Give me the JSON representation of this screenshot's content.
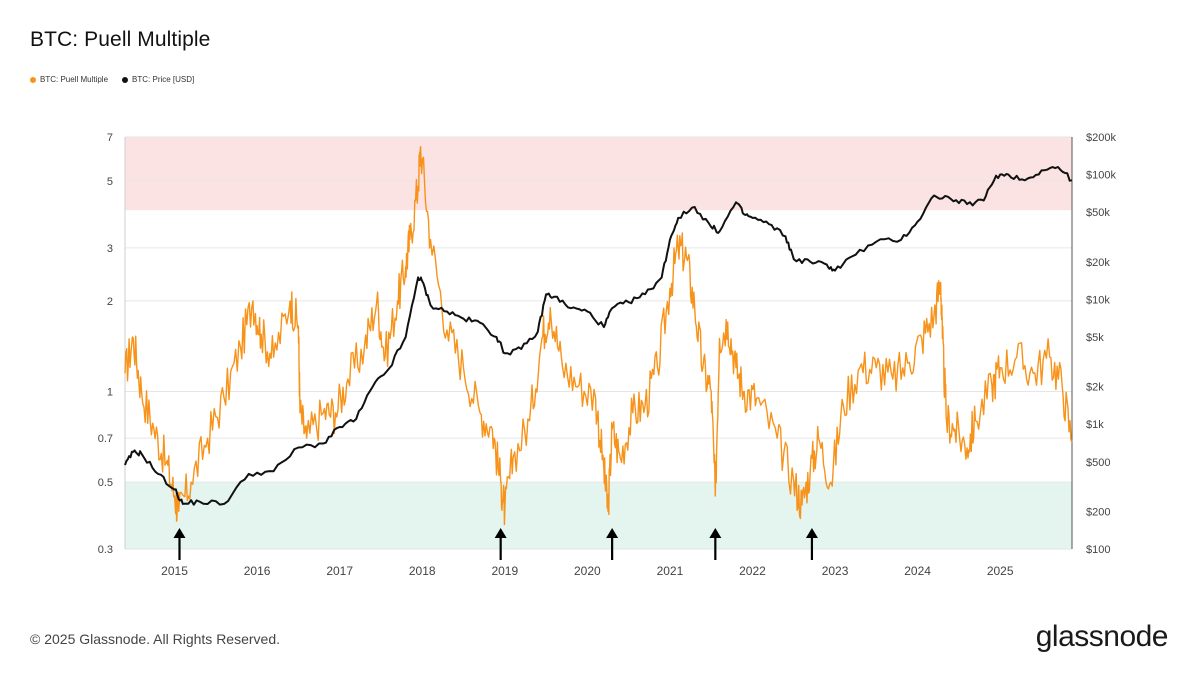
{
  "chart_data": {
    "type": "line",
    "title": "BTC: Puell Multiple",
    "legend": [
      {
        "name": "BTC: Puell Multiple",
        "color": "#f7931a"
      },
      {
        "name": "BTC: Price [USD]",
        "color": "#111111"
      }
    ],
    "x_range": [
      2014.4,
      2025.87
    ],
    "x_ticks": [
      {
        "value": 2015,
        "label": "2015"
      },
      {
        "value": 2016,
        "label": "2016"
      },
      {
        "value": 2017,
        "label": "2017"
      },
      {
        "value": 2018,
        "label": "2018"
      },
      {
        "value": 2019,
        "label": "2019"
      },
      {
        "value": 2020,
        "label": "2020"
      },
      {
        "value": 2021,
        "label": "2021"
      },
      {
        "value": 2022,
        "label": "2022"
      },
      {
        "value": 2023,
        "label": "2023"
      },
      {
        "value": 2024,
        "label": "2024"
      },
      {
        "value": 2025,
        "label": "2025"
      }
    ],
    "y_left": {
      "scale": "log",
      "range": [
        0.3,
        7
      ],
      "ticks": [
        {
          "value": 0.3,
          "label": "0.3"
        },
        {
          "value": 0.5,
          "label": "0.5"
        },
        {
          "value": 0.7,
          "label": "0.7"
        },
        {
          "value": 1,
          "label": "1"
        },
        {
          "value": 2,
          "label": "2"
        },
        {
          "value": 3,
          "label": "3"
        },
        {
          "value": 5,
          "label": "5"
        },
        {
          "value": 7,
          "label": "7"
        }
      ]
    },
    "y_right": {
      "scale": "log",
      "range": [
        100,
        200000
      ],
      "ticks": [
        {
          "value": 100,
          "label": "$100"
        },
        {
          "value": 200,
          "label": "$200"
        },
        {
          "value": 500,
          "label": "$500"
        },
        {
          "value": 1000,
          "label": "$1k"
        },
        {
          "value": 2000,
          "label": "$2k"
        },
        {
          "value": 5000,
          "label": "$5k"
        },
        {
          "value": 10000,
          "label": "$10k"
        },
        {
          "value": 20000,
          "label": "$20k"
        },
        {
          "value": 50000,
          "label": "$50k"
        },
        {
          "value": 100000,
          "label": "$100k"
        },
        {
          "value": 200000,
          "label": "$200k"
        }
      ]
    },
    "bands": [
      {
        "name": "overvalued-zone",
        "from": 4,
        "to": 7,
        "color": "#fbe3e3"
      },
      {
        "name": "undervalued-zone",
        "from": 0.3,
        "to": 0.5,
        "color": "#e4f4ee"
      }
    ],
    "series": [
      {
        "name": "BTC: Puell Multiple",
        "axis": "left",
        "color": "#f7931a",
        "x": [
          2014.4,
          2014.5,
          2014.6,
          2014.75,
          2014.9,
          2015.0,
          2015.05,
          2015.2,
          2015.4,
          2015.6,
          2015.8,
          2015.95,
          2016.05,
          2016.2,
          2016.4,
          2016.5,
          2016.52,
          2016.6,
          2016.8,
          2016.95,
          2017.1,
          2017.3,
          2017.45,
          2017.55,
          2017.7,
          2017.8,
          2017.85,
          2017.95,
          2017.98,
          2018.1,
          2018.3,
          2018.5,
          2018.7,
          2018.85,
          2018.95,
          2019.0,
          2019.1,
          2019.3,
          2019.45,
          2019.55,
          2019.7,
          2019.9,
          2020.1,
          2020.2,
          2020.25,
          2020.3,
          2020.4,
          2020.55,
          2020.7,
          2020.85,
          2021.0,
          2021.1,
          2021.2,
          2021.3,
          2021.4,
          2021.5,
          2021.55,
          2021.6,
          2021.7,
          2021.8,
          2021.9,
          2022.05,
          2022.3,
          2022.5,
          2022.6,
          2022.7,
          2022.8,
          2022.95,
          2023.1,
          2023.3,
          2023.5,
          2023.7,
          2023.9,
          2024.05,
          2024.2,
          2024.28,
          2024.3,
          2024.35,
          2024.45,
          2024.6,
          2024.7,
          2024.9,
          2025.0,
          2025.2,
          2025.4,
          2025.6,
          2025.75,
          2025.87
        ],
        "values": [
          1.15,
          1.5,
          1.0,
          0.75,
          0.58,
          0.45,
          0.4,
          0.5,
          0.7,
          0.95,
          1.4,
          2.0,
          1.55,
          1.3,
          2.0,
          1.65,
          0.85,
          0.7,
          0.85,
          0.85,
          1.1,
          1.4,
          2.0,
          1.3,
          2.0,
          2.6,
          3.2,
          4.8,
          6.5,
          3.2,
          1.6,
          1.2,
          0.85,
          0.75,
          0.5,
          0.4,
          0.6,
          0.8,
          1.5,
          1.9,
          1.2,
          1.05,
          0.95,
          0.55,
          0.4,
          0.75,
          0.6,
          0.85,
          0.9,
          1.2,
          2.2,
          3.0,
          2.8,
          1.9,
          1.2,
          1.0,
          0.45,
          1.5,
          1.7,
          1.2,
          1.0,
          0.95,
          0.7,
          0.5,
          0.42,
          0.55,
          0.7,
          0.5,
          0.9,
          1.2,
          1.2,
          1.1,
          1.25,
          1.5,
          1.8,
          2.3,
          1.5,
          0.8,
          0.75,
          0.65,
          0.8,
          1.05,
          1.2,
          1.3,
          1.15,
          1.3,
          1.05,
          0.68
        ]
      },
      {
        "name": "BTC: Price [USD]",
        "axis": "right",
        "color": "#111111",
        "x": [
          2014.4,
          2014.5,
          2014.6,
          2014.8,
          2015.0,
          2015.1,
          2015.3,
          2015.6,
          2015.9,
          2016.2,
          2016.5,
          2016.8,
          2017.0,
          2017.2,
          2017.4,
          2017.6,
          2017.8,
          2017.95,
          2018.0,
          2018.1,
          2018.3,
          2018.5,
          2018.7,
          2018.9,
          2019.0,
          2019.2,
          2019.4,
          2019.5,
          2019.6,
          2019.8,
          2020.0,
          2020.2,
          2020.3,
          2020.5,
          2020.7,
          2020.9,
          2021.0,
          2021.1,
          2021.3,
          2021.5,
          2021.6,
          2021.8,
          2021.9,
          2022.0,
          2022.2,
          2022.4,
          2022.5,
          2022.7,
          2022.9,
          2023.0,
          2023.2,
          2023.5,
          2023.8,
          2024.0,
          2024.2,
          2024.4,
          2024.6,
          2024.8,
          2024.95,
          2025.1,
          2025.3,
          2025.5,
          2025.7,
          2025.87
        ],
        "values": [
          470,
          600,
          580,
          400,
          300,
          230,
          240,
          230,
          400,
          420,
          650,
          700,
          950,
          1100,
          2000,
          2800,
          5000,
          15000,
          14000,
          9000,
          8000,
          7000,
          6500,
          5000,
          3700,
          4000,
          5500,
          11000,
          10500,
          8500,
          8000,
          6000,
          8500,
          9500,
          11000,
          15000,
          30000,
          45000,
          55000,
          38000,
          35000,
          60000,
          48000,
          45000,
          40000,
          32000,
          21000,
          20000,
          19000,
          17000,
          22000,
          29000,
          30000,
          42000,
          68000,
          64000,
          58000,
          62000,
          98000,
          100000,
          90000,
          108000,
          115000,
          90000
        ]
      }
    ],
    "annotations": [
      {
        "type": "arrow-up",
        "x": 2015.06
      },
      {
        "type": "arrow-up",
        "x": 2018.95
      },
      {
        "type": "arrow-up",
        "x": 2020.3
      },
      {
        "type": "arrow-up",
        "x": 2021.55
      },
      {
        "type": "arrow-up",
        "x": 2022.72
      }
    ]
  },
  "footer": {
    "copyright": "© 2025 Glassnode. All Rights Reserved.",
    "brand": "glassnode"
  }
}
